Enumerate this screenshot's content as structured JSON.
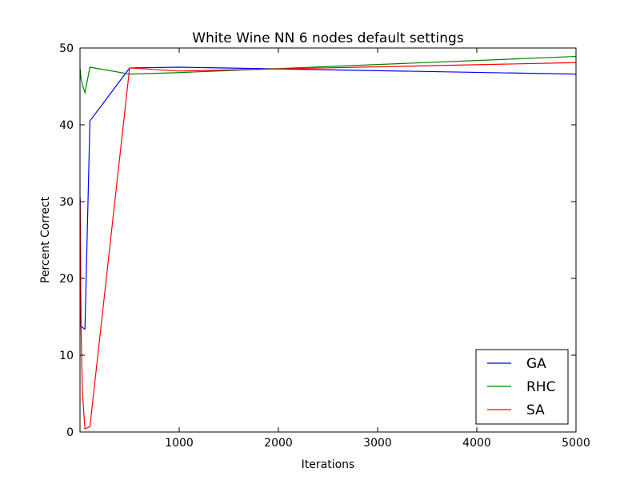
{
  "chart_data": {
    "type": "line",
    "title": "White Wine NN 6 nodes default settings",
    "xlabel": "Iterations",
    "ylabel": "Percent Correct",
    "xlim": [
      0,
      5000
    ],
    "ylim": [
      0,
      50
    ],
    "xticks": [
      1000,
      2000,
      3000,
      4000,
      5000
    ],
    "yticks": [
      0,
      10,
      20,
      30,
      40,
      50
    ],
    "grid": false,
    "legend_position": "lower-right",
    "series": [
      {
        "name": "GA",
        "color": "#0000ff",
        "x": [
          1,
          10,
          25,
          50,
          100,
          500,
          1000,
          5000
        ],
        "y": [
          30.5,
          13.8,
          13.6,
          13.4,
          40.5,
          47.4,
          47.5,
          46.6
        ]
      },
      {
        "name": "RHC",
        "color": "#008000",
        "x": [
          1,
          10,
          25,
          50,
          100,
          500,
          1000,
          5000
        ],
        "y": [
          47.3,
          46.0,
          45.2,
          44.2,
          47.5,
          46.6,
          46.8,
          48.9
        ]
      },
      {
        "name": "SA",
        "color": "#ff0000",
        "x": [
          1,
          10,
          25,
          50,
          100,
          500,
          1000,
          5000
        ],
        "y": [
          30.5,
          14.0,
          5.0,
          0.4,
          0.7,
          47.4,
          47.0,
          48.1
        ]
      }
    ]
  }
}
